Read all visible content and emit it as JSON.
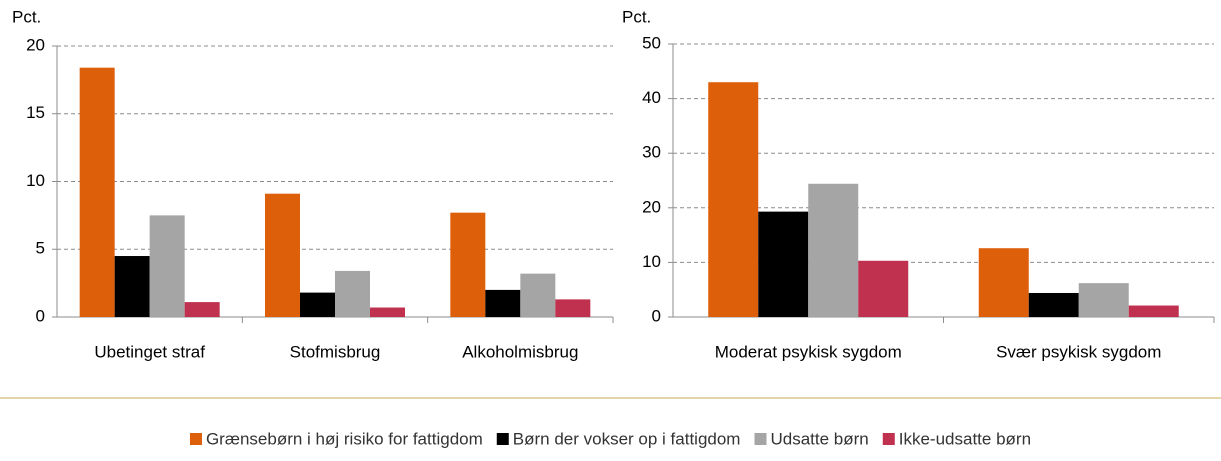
{
  "legend": {
    "items": [
      {
        "name": "Grænsebørn i høj risiko for fattigdom",
        "color": "#dd5f0a"
      },
      {
        "name": "Børn der vokser op i fattigdom",
        "color": "#000000"
      },
      {
        "name": "Udsatte børn",
        "color": "#a5a5a5"
      },
      {
        "name": "Ikke-udsatte børn",
        "color": "#c0304f"
      }
    ]
  },
  "chart_data": [
    {
      "type": "bar",
      "y_label": "Pct.",
      "categories": [
        "Ubetinget straf",
        "Stofmisbrug",
        "Alkoholmisbrug"
      ],
      "series": [
        {
          "values": [
            18.4,
            9.1,
            7.7
          ]
        },
        {
          "values": [
            4.5,
            1.8,
            2.0
          ]
        },
        {
          "values": [
            7.5,
            3.4,
            3.2
          ]
        },
        {
          "values": [
            1.1,
            0.7,
            1.3
          ]
        }
      ],
      "ylim": [
        0,
        20
      ],
      "yticks": [
        0,
        5,
        10,
        15,
        20
      ],
      "grid": true
    },
    {
      "type": "bar",
      "y_label": "Pct.",
      "categories": [
        "Moderat psykisk sygdom",
        "Svær psykisk sygdom"
      ],
      "series": [
        {
          "values": [
            43.0,
            12.6
          ]
        },
        {
          "values": [
            19.3,
            4.4
          ]
        },
        {
          "values": [
            24.4,
            6.2
          ]
        },
        {
          "values": [
            10.3,
            2.1
          ]
        }
      ],
      "ylim": [
        0,
        50
      ],
      "yticks": [
        0,
        10,
        20,
        30,
        40,
        50
      ],
      "grid": true
    }
  ]
}
